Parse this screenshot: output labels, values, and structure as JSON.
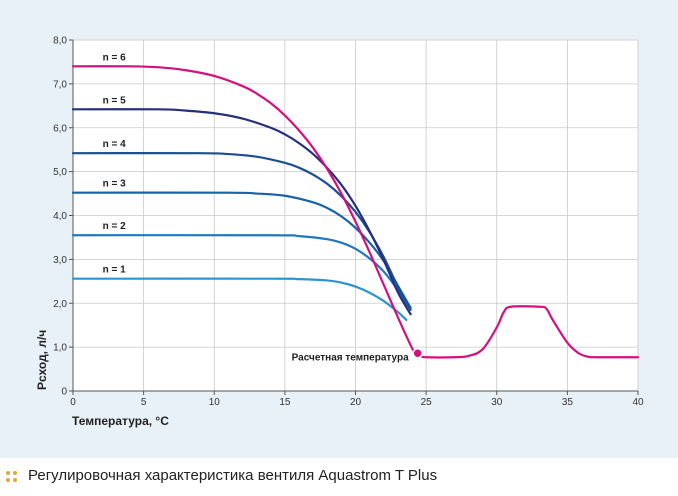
{
  "chart_data": {
    "type": "line",
    "title": "",
    "xlabel": "Температура, °С",
    "ylabel": "Рсход, л/ч",
    "xlim": [
      0,
      40
    ],
    "ylim": [
      0,
      8.0
    ],
    "x_ticks": [
      "0",
      "5",
      "10",
      "15",
      "20",
      "25",
      "30",
      "35",
      "40"
    ],
    "y_ticks": [
      "0",
      "1,0",
      "2,0",
      "3,0",
      "4,0",
      "5,0",
      "6,0",
      "7,0",
      "8,0"
    ],
    "grid": true,
    "series": [
      {
        "name": "n = 1",
        "color": "#2c95d1",
        "x": [
          0,
          14,
          16,
          18,
          19,
          20,
          21,
          22,
          23,
          23.6
        ],
        "y": [
          2.56,
          2.56,
          2.55,
          2.52,
          2.47,
          2.38,
          2.24,
          2.05,
          1.8,
          1.62
        ]
      },
      {
        "name": "n = 2",
        "color": "#1f79bd",
        "x": [
          0,
          14,
          16,
          18,
          19,
          20,
          21,
          22,
          23,
          23.8
        ],
        "y": [
          3.55,
          3.55,
          3.53,
          3.46,
          3.38,
          3.24,
          3.02,
          2.72,
          2.3,
          1.9
        ]
      },
      {
        "name": "n = 3",
        "color": "#1762a8",
        "x": [
          0,
          11,
          13,
          15,
          17,
          18,
          19,
          20,
          21,
          22,
          23,
          23.9
        ],
        "y": [
          4.52,
          4.52,
          4.5,
          4.45,
          4.3,
          4.17,
          3.98,
          3.72,
          3.38,
          2.96,
          2.4,
          1.9
        ]
      },
      {
        "name": "n = 4",
        "color": "#1b4e92",
        "x": [
          0,
          9,
          11,
          13,
          15,
          16,
          17,
          18,
          19,
          20,
          21,
          22,
          23,
          23.9
        ],
        "y": [
          5.42,
          5.42,
          5.4,
          5.34,
          5.2,
          5.09,
          4.93,
          4.72,
          4.44,
          4.08,
          3.62,
          3.05,
          2.38,
          1.85
        ]
      },
      {
        "name": "n = 5",
        "color": "#262f7c",
        "x": [
          0,
          6,
          8,
          10,
          12,
          14,
          15,
          16,
          17,
          18,
          19,
          20,
          21,
          22,
          23,
          23.9
        ],
        "y": [
          6.42,
          6.42,
          6.39,
          6.33,
          6.21,
          6.0,
          5.85,
          5.65,
          5.4,
          5.08,
          4.7,
          4.22,
          3.64,
          2.98,
          2.25,
          1.75
        ]
      },
      {
        "name": "n = 6",
        "color": "#d3117e",
        "x": [
          0,
          4,
          6,
          8,
          10,
          12,
          13,
          14,
          15,
          16,
          17,
          18,
          19,
          20,
          21,
          22,
          23,
          24,
          24.3,
          24.6,
          25,
          27,
          28,
          29,
          30,
          30.5,
          31,
          33,
          33.5,
          34,
          35,
          35.8,
          36.5,
          37,
          40
        ],
        "y": [
          7.4,
          7.4,
          7.38,
          7.31,
          7.18,
          6.95,
          6.78,
          6.56,
          6.28,
          5.94,
          5.54,
          5.06,
          4.5,
          3.86,
          3.16,
          2.42,
          1.68,
          0.98,
          0.86,
          0.8,
          0.77,
          0.77,
          0.8,
          0.95,
          1.45,
          1.8,
          1.92,
          1.92,
          1.88,
          1.6,
          1.1,
          0.86,
          0.78,
          0.77,
          0.77
        ]
      }
    ],
    "annotations": [
      {
        "text": "Расчетная температура",
        "x": 24.4,
        "y": 0.86,
        "color": "#d3117e"
      }
    ]
  },
  "caption": {
    "text": "Регулировочная характеристика вентиля Aquastrom T Plus",
    "bullet_color": "#e9a23b"
  }
}
